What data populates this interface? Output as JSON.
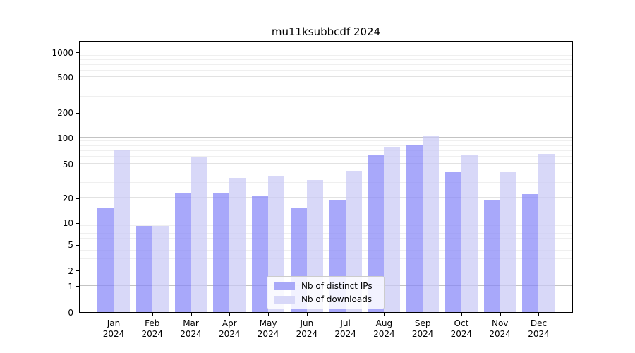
{
  "title": "mu11ksubbcdf 2024",
  "legend": {
    "items": [
      {
        "label": "Nb of distinct IPs",
        "color": "#a8a8f8"
      },
      {
        "label": "Nb of downloads",
        "color": "#d8d8f8"
      }
    ]
  },
  "chart_data": {
    "type": "bar",
    "title": "mu11ksubbcdf 2024",
    "categories": [
      "Jan",
      "Feb",
      "Mar",
      "Apr",
      "May",
      "Jun",
      "Jul",
      "Aug",
      "Sep",
      "Oct",
      "Nov",
      "Dec"
    ],
    "year": "2024",
    "series": [
      {
        "name": "Nb of distinct IPs",
        "color": "#a8a8f8",
        "values": [
          15,
          9,
          23,
          23,
          21,
          15,
          19,
          63,
          83,
          40,
          19,
          22
        ]
      },
      {
        "name": "Nb of downloads",
        "color": "#d8d8f8",
        "values": [
          72,
          9,
          59,
          34,
          36,
          32,
          41,
          78,
          105,
          63,
          40,
          65
        ]
      }
    ],
    "xlabel": "",
    "ylabel": "",
    "yscale": "symlog",
    "yticks": [
      0,
      1,
      2,
      5,
      10,
      20,
      50,
      100,
      200,
      500,
      1000
    ],
    "ylim": [
      0,
      1270
    ],
    "grid": "both",
    "legend_position": "lower center"
  }
}
